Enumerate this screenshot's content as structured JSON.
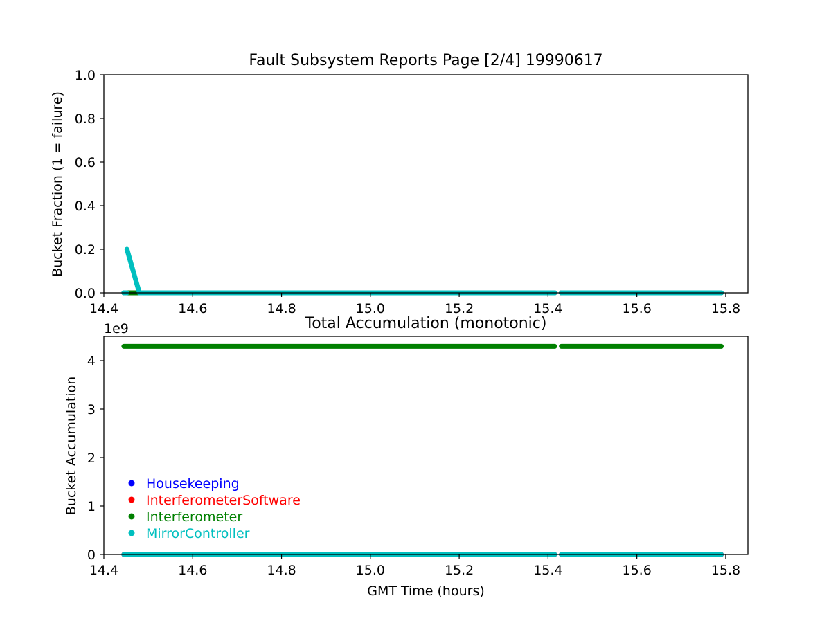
{
  "chart_data": [
    {
      "type": "scatter",
      "title": "Fault Subsystem Reports Page [2/4] 19990617",
      "xlabel": "",
      "ylabel": "Bucket Fraction (1 = failure)",
      "xlim": [
        14.4,
        15.85
      ],
      "ylim": [
        0,
        1.0
      ],
      "xticks": [
        "14.4",
        "14.6",
        "14.8",
        "15.0",
        "15.2",
        "15.4",
        "15.6",
        "15.8"
      ],
      "xtick_values": [
        14.4,
        14.6,
        14.8,
        15.0,
        15.2,
        15.4,
        15.6,
        15.8
      ],
      "yticks": [
        "0.0",
        "0.2",
        "0.4",
        "0.6",
        "0.8",
        "1.0"
      ],
      "ytick_values": [
        0.0,
        0.2,
        0.4,
        0.6,
        0.8,
        1.0
      ],
      "grid": false,
      "series": [
        {
          "name": "Housekeeping",
          "color": "#0000ff",
          "segments": [
            [
              [
                14.445,
                0
              ],
              [
                15.415,
                0
              ]
            ],
            [
              [
                15.43,
                0
              ],
              [
                15.79,
                0
              ]
            ]
          ]
        },
        {
          "name": "InterferometerSoftware",
          "color": "#ff0000",
          "segments": [
            [
              [
                14.455,
                0
              ],
              [
                14.48,
                0
              ]
            ]
          ]
        },
        {
          "name": "Interferometer",
          "color": "#008000",
          "segments": [
            [
              [
                14.445,
                0
              ],
              [
                15.415,
                0
              ]
            ],
            [
              [
                15.43,
                0
              ],
              [
                15.79,
                0
              ]
            ]
          ]
        },
        {
          "name": "MirrorController",
          "color": "#00bfbf",
          "segments": [
            [
              [
                14.445,
                0
              ],
              [
                14.452,
                0
              ]
            ],
            [
              [
                14.452,
                0.2
              ],
              [
                14.48,
                0
              ]
            ],
            [
              [
                14.48,
                0
              ],
              [
                15.415,
                0
              ]
            ],
            [
              [
                15.43,
                0
              ],
              [
                15.79,
                0
              ]
            ]
          ]
        }
      ]
    },
    {
      "type": "scatter",
      "title": "Total Accumulation (monotonic)",
      "xlabel": "GMT Time (hours)",
      "ylabel": "Bucket Accumulation",
      "offset_label": "1e9",
      "xlim": [
        14.4,
        15.85
      ],
      "ylim": [
        0,
        4.5
      ],
      "xticks": [
        "14.4",
        "14.6",
        "14.8",
        "15.0",
        "15.2",
        "15.4",
        "15.6",
        "15.8"
      ],
      "xtick_values": [
        14.4,
        14.6,
        14.8,
        15.0,
        15.2,
        15.4,
        15.6,
        15.8
      ],
      "yticks": [
        "0",
        "1",
        "2",
        "3",
        "4"
      ],
      "ytick_values": [
        0,
        1,
        2,
        3,
        4
      ],
      "grid": false,
      "legend": "lower-left",
      "series": [
        {
          "name": "Housekeeping",
          "color": "#0000ff",
          "segments": [
            [
              [
                14.445,
                0
              ],
              [
                15.415,
                0
              ]
            ],
            [
              [
                15.43,
                0
              ],
              [
                15.79,
                0
              ]
            ]
          ]
        },
        {
          "name": "InterferometerSoftware",
          "color": "#ff0000",
          "segments": [
            [
              [
                14.445,
                0
              ],
              [
                15.415,
                0
              ]
            ],
            [
              [
                15.43,
                0
              ],
              [
                15.79,
                0
              ]
            ]
          ]
        },
        {
          "name": "Interferometer",
          "color": "#008000",
          "segments": [
            [
              [
                14.445,
                4.295
              ],
              [
                15.415,
                4.295
              ]
            ],
            [
              [
                15.43,
                4.295
              ],
              [
                15.79,
                4.295
              ]
            ]
          ]
        },
        {
          "name": "MirrorController",
          "color": "#00bfbf",
          "segments": [
            [
              [
                14.445,
                0
              ],
              [
                15.415,
                0
              ]
            ],
            [
              [
                15.43,
                0
              ],
              [
                15.79,
                0
              ]
            ]
          ]
        }
      ]
    }
  ]
}
